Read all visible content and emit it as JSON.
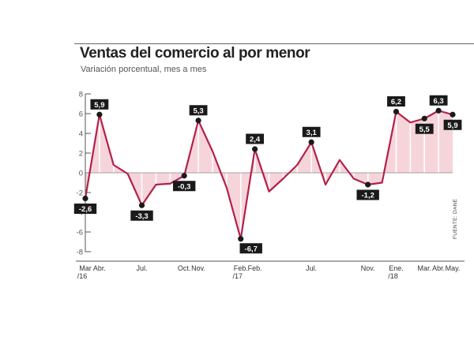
{
  "chart_data": {
    "type": "line",
    "title": "Ventas del comercio al por menor",
    "subtitle": "Variación porcentual, mes a mes",
    "source": "FUENTE: DANE",
    "ylim": [
      -8,
      8
    ],
    "yticks": [
      -8,
      -6,
      -4,
      -2,
      0,
      2,
      4,
      6,
      8
    ],
    "values": [
      -2.6,
      5.9,
      0.8,
      -0.1,
      -3.3,
      -1.2,
      -1.1,
      -0.3,
      5.3,
      2.2,
      -1.5,
      -6.7,
      2.4,
      -1.9,
      -0.6,
      0.8,
      3.1,
      -1.2,
      1.3,
      -0.6,
      -1.2,
      -1.0,
      6.2,
      5.1,
      5.5,
      6.3,
      5.9
    ],
    "x_labels": [
      {
        "index": 0,
        "text": [
          "Mar",
          "/16"
        ]
      },
      {
        "index": 1,
        "text": [
          "Abr."
        ]
      },
      {
        "index": 4,
        "text": [
          "Jul."
        ]
      },
      {
        "index": 7,
        "text": [
          "Oct."
        ]
      },
      {
        "index": 8,
        "text": [
          "Nov."
        ]
      },
      {
        "index": 11,
        "text": [
          "Feb.",
          "/17"
        ]
      },
      {
        "index": 12,
        "text": [
          "Feb."
        ]
      },
      {
        "index": 16,
        "text": [
          "Jul."
        ]
      },
      {
        "index": 20,
        "text": [
          "Nov."
        ]
      },
      {
        "index": 22,
        "text": [
          "Ene.",
          "/18"
        ]
      },
      {
        "index": 24,
        "text": [
          "Mar."
        ]
      },
      {
        "index": 25,
        "text": [
          "Abr."
        ]
      },
      {
        "index": 26,
        "text": [
          "May."
        ]
      }
    ],
    "data_labels": [
      {
        "index": 0,
        "text": "-2,6",
        "pos": "below"
      },
      {
        "index": 1,
        "text": "5,9",
        "pos": "above"
      },
      {
        "index": 4,
        "text": "-3,3",
        "pos": "below"
      },
      {
        "index": 7,
        "text": "-0,3",
        "pos": "below"
      },
      {
        "index": 8,
        "text": "5,3",
        "pos": "above"
      },
      {
        "index": 11,
        "text": "-6,7",
        "pos": "below-right"
      },
      {
        "index": 12,
        "text": "2,4",
        "pos": "above"
      },
      {
        "index": 16,
        "text": "3,1",
        "pos": "above"
      },
      {
        "index": 20,
        "text": "-1,2",
        "pos": "below"
      },
      {
        "index": 22,
        "text": "6,2",
        "pos": "above"
      },
      {
        "index": 24,
        "text": "5,5",
        "pos": "below"
      },
      {
        "index": 25,
        "text": "6,3",
        "pos": "above"
      },
      {
        "index": 26,
        "text": "5,9",
        "pos": "below"
      }
    ],
    "marked_points": [
      0,
      1,
      4,
      7,
      8,
      11,
      12,
      16,
      20,
      22,
      24,
      25,
      26
    ],
    "colors": {
      "line": "#b3204a",
      "fill": "#f6d5da",
      "marker": "#1a1a1a",
      "label_bg": "#1a1a1a"
    },
    "grid": false
  }
}
